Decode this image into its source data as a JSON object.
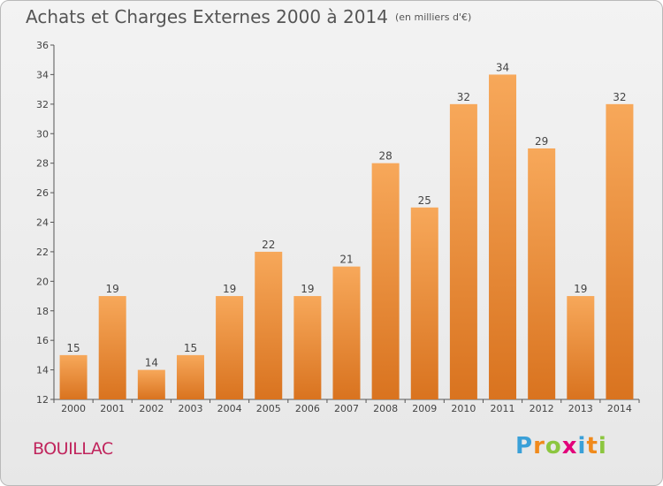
{
  "title": "Achats et Charges Externes 2000 à 2014",
  "unit_label": "(en milliers d'€)",
  "place": "BOUILLAC",
  "logo": [
    "P",
    "r",
    "o",
    "x",
    "i",
    "t",
    "i"
  ],
  "colors": {
    "bar_top": "#f7a85a",
    "bar_bottom": "#d9731f",
    "axis": "#555555",
    "text": "#444444",
    "place": "#c0245c"
  },
  "chart_data": {
    "type": "bar",
    "title": "Achats et Charges Externes 2000 à 2014",
    "subtitle": "(en milliers d'€)",
    "categories": [
      "2000",
      "2001",
      "2002",
      "2003",
      "2004",
      "2005",
      "2006",
      "2007",
      "2008",
      "2009",
      "2010",
      "2011",
      "2012",
      "2013",
      "2014"
    ],
    "values": [
      15,
      19,
      14,
      15,
      19,
      22,
      19,
      21,
      28,
      25,
      32,
      34,
      29,
      19,
      32
    ],
    "ylim": [
      12,
      36
    ],
    "yticks": [
      12,
      14,
      16,
      18,
      20,
      22,
      24,
      26,
      28,
      30,
      32,
      34,
      36
    ],
    "grid": false,
    "data_labels": true
  }
}
